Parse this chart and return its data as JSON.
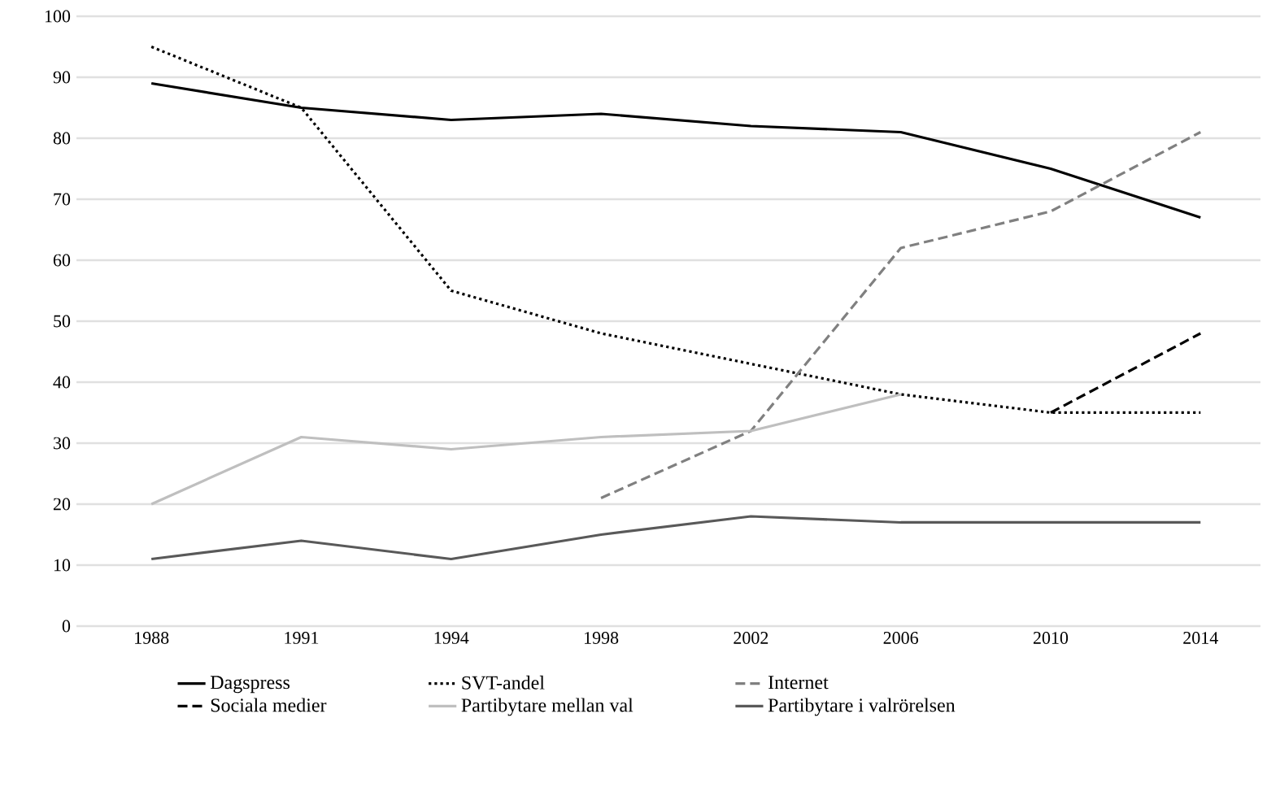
{
  "chart_data": {
    "type": "line",
    "categories": [
      "1988",
      "1991",
      "1994",
      "1998",
      "2002",
      "2006",
      "2010",
      "2014"
    ],
    "series": [
      {
        "name": "Dagspress",
        "color": "#000000",
        "line_style": "solid",
        "values": [
          89,
          85,
          83,
          84,
          82,
          81,
          75,
          67
        ]
      },
      {
        "name": "SVT-andel",
        "color": "#000000",
        "line_style": "dotted",
        "values": [
          95,
          85,
          55,
          48,
          43,
          38,
          35,
          35
        ]
      },
      {
        "name": "Internet",
        "color": "#808080",
        "line_style": "dashed",
        "values": [
          null,
          null,
          null,
          21,
          32,
          62,
          68,
          81
        ]
      },
      {
        "name": "Sociala medier",
        "color": "#000000",
        "line_style": "dashed",
        "values": [
          null,
          null,
          null,
          null,
          null,
          null,
          35,
          48
        ]
      },
      {
        "name": "Partibytare mellan val",
        "color": "#bfbfbf",
        "line_style": "solid",
        "values": [
          20,
          31,
          29,
          31,
          32,
          38,
          null,
          null
        ]
      },
      {
        "name": "Partibytare i valrörelsen",
        "color": "#595959",
        "line_style": "solid",
        "values": [
          11,
          14,
          11,
          15,
          18,
          17,
          17,
          17
        ]
      }
    ],
    "ylim": [
      0,
      100
    ],
    "yticks": [
      0,
      10,
      20,
      30,
      40,
      50,
      60,
      70,
      80,
      90,
      100
    ],
    "grid": "y",
    "legend": "bottom",
    "marker": "none"
  }
}
